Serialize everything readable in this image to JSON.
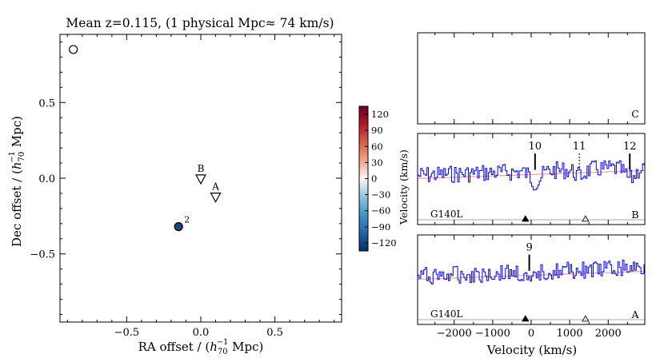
{
  "chart_data": [
    {
      "type": "scatter",
      "title": "Mean z=0.115, (1 physical Mpc≈ 74 km/s)",
      "xlabel_pre": "RA offset / (",
      "xlabel_h": "h",
      "xlabel_sub": "70",
      "xlabel_sup": "−1",
      "xlabel_post": " Mpc)",
      "ylabel_pre": "Dec offset  / (",
      "ylabel_h": "h",
      "ylabel_sub": "70",
      "ylabel_sup": "−1",
      "ylabel_post": " Mpc)",
      "xlim": [
        -0.95,
        0.95
      ],
      "ylim": [
        -0.95,
        0.95
      ],
      "xticks": [
        -0.5,
        0.0,
        0.5
      ],
      "xtick_labels": [
        "−0.5",
        "0.0",
        "0.5"
      ],
      "yticks": [
        0.5,
        0.0,
        -0.5
      ],
      "ytick_labels": [
        "0.5",
        "0.0",
        "−0.5"
      ],
      "galaxies": [
        {
          "x": -0.86,
          "y": 0.85,
          "velocity": null,
          "label": ""
        },
        {
          "x": -0.15,
          "y": -0.32,
          "velocity": -120,
          "label": "2"
        }
      ],
      "sightlines": [
        {
          "x": 0.0,
          "y": -0.01,
          "label": "B"
        },
        {
          "x": 0.1,
          "y": -0.13,
          "label": "A"
        }
      ],
      "colorbar": {
        "ticks": [
          120,
          90,
          60,
          30,
          0,
          -30,
          -60,
          -90,
          -120
        ],
        "tick_labels": [
          "120",
          "90",
          "60",
          "30",
          "0",
          "−30",
          "−60",
          "−90",
          "−120"
        ],
        "range": [
          -135,
          135
        ],
        "colors_low_to_high": [
          "#053061",
          "#2166ac",
          "#4393c3",
          "#92c5de",
          "#f7f7f7",
          "#f4a582",
          "#d6604d",
          "#b2182b",
          "#67001f"
        ]
      }
    },
    {
      "type": "line",
      "panels": [
        {
          "label": "C",
          "instrument": "",
          "has_data": false,
          "absorbers": [],
          "markers": []
        },
        {
          "label": "B",
          "instrument": "G140L",
          "has_data": true,
          "absorbers": [
            {
              "label": "10",
              "velocity": 100,
              "style": "solid"
            },
            {
              "label": "11",
              "velocity": 1250,
              "style": "dotted"
            },
            {
              "label": "12",
              "velocity": 2560,
              "style": "solid"
            }
          ],
          "markers": [
            {
              "velocity": -150,
              "filled": true
            },
            {
              "velocity": 1410,
              "filled": false
            }
          ]
        },
        {
          "label": "A",
          "instrument": "G140L",
          "has_data": true,
          "absorbers": [
            {
              "label": "9",
              "velocity": -50,
              "style": "solid"
            }
          ],
          "markers": [
            {
              "velocity": -150,
              "filled": true
            },
            {
              "velocity": 1410,
              "filled": false
            }
          ]
        }
      ],
      "ylabel": "Velocity (km/s)",
      "xlabel": "Velocity (km/s)",
      "xlim": [
        -2950,
        2950
      ],
      "xticks": [
        -2000,
        -1000,
        0,
        1000,
        2000
      ],
      "xtick_labels": [
        "−2000",
        "−1000",
        "0",
        "1000",
        "2000"
      ],
      "flux_color": "#0000ff",
      "continuum_color": "#ff8a8a"
    }
  ]
}
